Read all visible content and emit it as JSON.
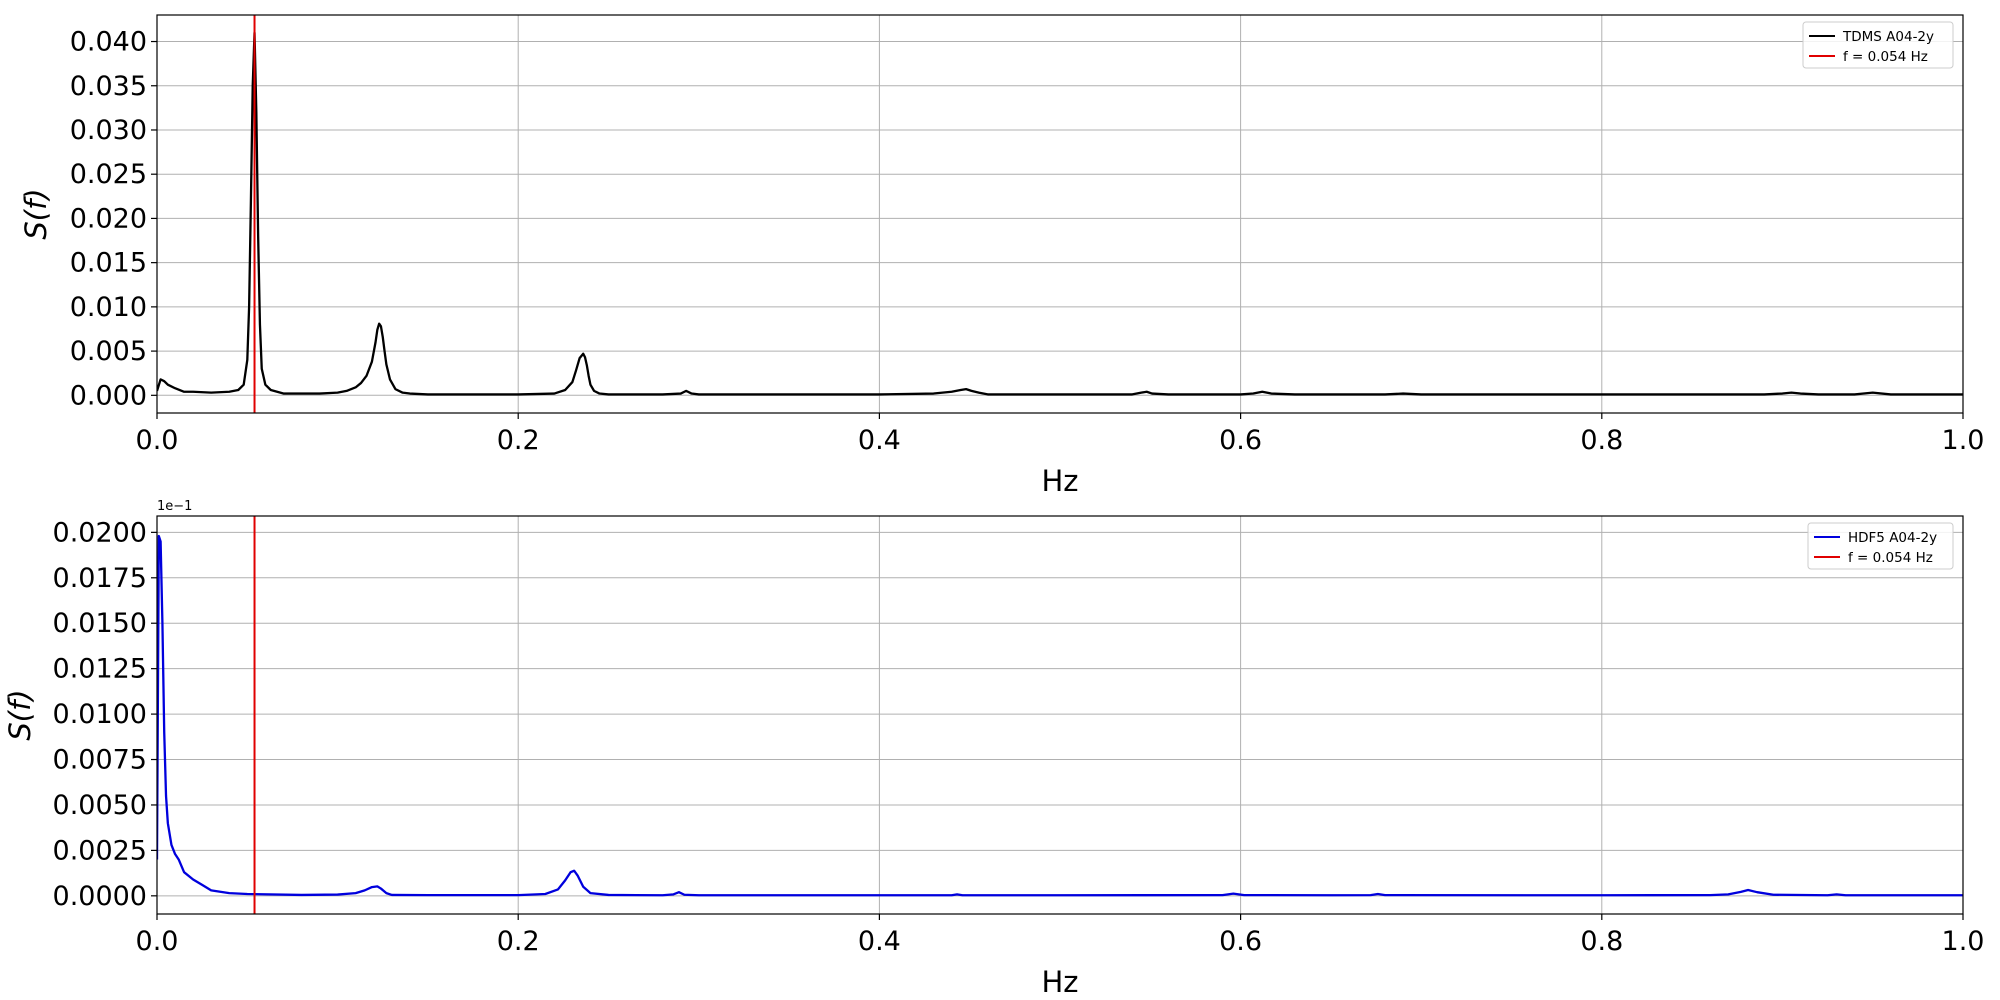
{
  "chart_data": [
    {
      "type": "line",
      "xlabel": "Hz",
      "ylabel": "S(f)",
      "xlim": [
        0.0,
        1.0
      ],
      "ylim": [
        -0.002,
        0.043
      ],
      "xticks": [
        0.0,
        0.2,
        0.4,
        0.6,
        0.8,
        1.0
      ],
      "xtick_labels": [
        "0.0",
        "0.2",
        "0.4",
        "0.6",
        "0.8",
        "1.0"
      ],
      "yticks": [
        0.0,
        0.005,
        0.01,
        0.015,
        0.02,
        0.025,
        0.03,
        0.035,
        0.04
      ],
      "ytick_labels": [
        "0.000",
        "0.005",
        "0.010",
        "0.015",
        "0.020",
        "0.025",
        "0.030",
        "0.035",
        "0.040"
      ],
      "offset_text": "",
      "grid": true,
      "legend_position": "top-right",
      "series": [
        {
          "name": "TDMS A04-2y",
          "color": "#000000",
          "x": [
            0.0,
            0.002,
            0.004,
            0.006,
            0.01,
            0.015,
            0.02,
            0.03,
            0.04,
            0.045,
            0.048,
            0.05,
            0.051,
            0.052,
            0.053,
            0.054,
            0.055,
            0.056,
            0.057,
            0.058,
            0.06,
            0.063,
            0.07,
            0.08,
            0.09,
            0.1,
            0.105,
            0.11,
            0.113,
            0.116,
            0.119,
            0.121,
            0.122,
            0.123,
            0.124,
            0.125,
            0.126,
            0.127,
            0.129,
            0.132,
            0.136,
            0.14,
            0.15,
            0.17,
            0.2,
            0.22,
            0.226,
            0.23,
            0.232,
            0.234,
            0.236,
            0.237,
            0.238,
            0.239,
            0.24,
            0.242,
            0.245,
            0.25,
            0.26,
            0.28,
            0.29,
            0.293,
            0.296,
            0.3,
            0.35,
            0.4,
            0.43,
            0.44,
            0.445,
            0.448,
            0.451,
            0.455,
            0.46,
            0.5,
            0.54,
            0.545,
            0.548,
            0.551,
            0.56,
            0.6,
            0.607,
            0.612,
            0.617,
            0.63,
            0.68,
            0.69,
            0.7,
            0.8,
            0.89,
            0.9,
            0.905,
            0.91,
            0.92,
            0.94,
            0.945,
            0.95,
            0.96,
            1.0
          ],
          "values": [
            0.0005,
            0.0018,
            0.0016,
            0.0012,
            0.0008,
            0.0004,
            0.0004,
            0.0003,
            0.0004,
            0.0006,
            0.0012,
            0.004,
            0.01,
            0.022,
            0.035,
            0.041,
            0.032,
            0.018,
            0.008,
            0.003,
            0.0012,
            0.0006,
            0.0002,
            0.0002,
            0.0002,
            0.0003,
            0.0005,
            0.0009,
            0.0014,
            0.0022,
            0.0038,
            0.006,
            0.0074,
            0.0081,
            0.0078,
            0.0066,
            0.005,
            0.0035,
            0.0018,
            0.0007,
            0.0003,
            0.0002,
            0.0001,
            0.0001,
            0.0001,
            0.0002,
            0.0006,
            0.0015,
            0.0028,
            0.0042,
            0.0047,
            0.0043,
            0.0034,
            0.0022,
            0.0012,
            0.0005,
            0.0002,
            0.0001,
            0.0001,
            0.0001,
            0.0002,
            0.0005,
            0.0002,
            0.0001,
            0.0001,
            0.0001,
            0.0002,
            0.0004,
            0.0006,
            0.0007,
            0.0005,
            0.0003,
            0.0001,
            0.0001,
            0.0001,
            0.0003,
            0.0004,
            0.0002,
            0.0001,
            0.0001,
            0.0002,
            0.0004,
            0.0002,
            0.0001,
            0.0001,
            0.0002,
            0.0001,
            0.0001,
            0.0001,
            0.0002,
            0.0003,
            0.0002,
            0.0001,
            0.0001,
            0.0002,
            0.0003,
            0.0001,
            0.0001
          ]
        }
      ],
      "reference_line": {
        "label": "f = 0.054 Hz",
        "x": 0.054,
        "color": "#e00000"
      }
    },
    {
      "type": "line",
      "xlabel": "Hz",
      "ylabel": "S(f)",
      "xlim": [
        0.0,
        1.0
      ],
      "ylim": [
        -0.001,
        0.0209
      ],
      "xticks": [
        0.0,
        0.2,
        0.4,
        0.6,
        0.8,
        1.0
      ],
      "xtick_labels": [
        "0.0",
        "0.2",
        "0.4",
        "0.6",
        "0.8",
        "1.0"
      ],
      "yticks": [
        0.0,
        0.0025,
        0.005,
        0.0075,
        0.01,
        0.0125,
        0.015,
        0.0175,
        0.02
      ],
      "ytick_labels": [
        "0.0000",
        "0.0025",
        "0.0050",
        "0.0075",
        "0.0100",
        "0.0125",
        "0.0150",
        "0.0175",
        "0.0200"
      ],
      "offset_text": "1e−1",
      "grid": true,
      "legend_position": "top-right",
      "series": [
        {
          "name": "HDF5 A04-2y",
          "color": "#0000dd",
          "x": [
            0.0,
            0.001,
            0.002,
            0.003,
            0.004,
            0.005,
            0.006,
            0.008,
            0.01,
            0.012,
            0.015,
            0.02,
            0.025,
            0.03,
            0.04,
            0.05,
            0.08,
            0.1,
            0.11,
            0.115,
            0.119,
            0.122,
            0.124,
            0.127,
            0.13,
            0.15,
            0.2,
            0.215,
            0.222,
            0.226,
            0.229,
            0.231,
            0.233,
            0.236,
            0.24,
            0.25,
            0.28,
            0.286,
            0.289,
            0.292,
            0.3,
            0.4,
            0.44,
            0.443,
            0.446,
            0.5,
            0.59,
            0.596,
            0.602,
            0.65,
            0.672,
            0.676,
            0.68,
            0.8,
            0.86,
            0.87,
            0.877,
            0.881,
            0.886,
            0.895,
            0.925,
            0.93,
            0.935,
            1.0
          ],
          "values": [
            0.002,
            0.0198,
            0.0195,
            0.015,
            0.009,
            0.0055,
            0.004,
            0.0028,
            0.0023,
            0.002,
            0.0013,
            0.0009,
            0.0006,
            0.0003,
            0.00015,
            0.0001,
            5e-05,
            7e-05,
            0.00015,
            0.0003,
            0.00048,
            0.00052,
            0.0004,
            0.00015,
            5e-05,
            4e-05,
            4e-05,
            0.0001,
            0.00035,
            0.00085,
            0.0013,
            0.00138,
            0.0011,
            0.0005,
            0.00015,
            5e-05,
            3e-05,
            8e-05,
            0.0002,
            6e-05,
            3e-05,
            3e-05,
            3e-05,
            8e-05,
            3e-05,
            3e-05,
            4e-05,
            0.00012,
            4e-05,
            3e-05,
            4e-05,
            0.0001,
            4e-05,
            3e-05,
            4e-05,
            8e-05,
            0.00022,
            0.00032,
            0.0002,
            6e-05,
            3e-05,
            8e-05,
            3e-05,
            3e-05
          ]
        }
      ],
      "reference_line": {
        "label": "f = 0.054 Hz",
        "x": 0.054,
        "color": "#e00000"
      }
    }
  ]
}
